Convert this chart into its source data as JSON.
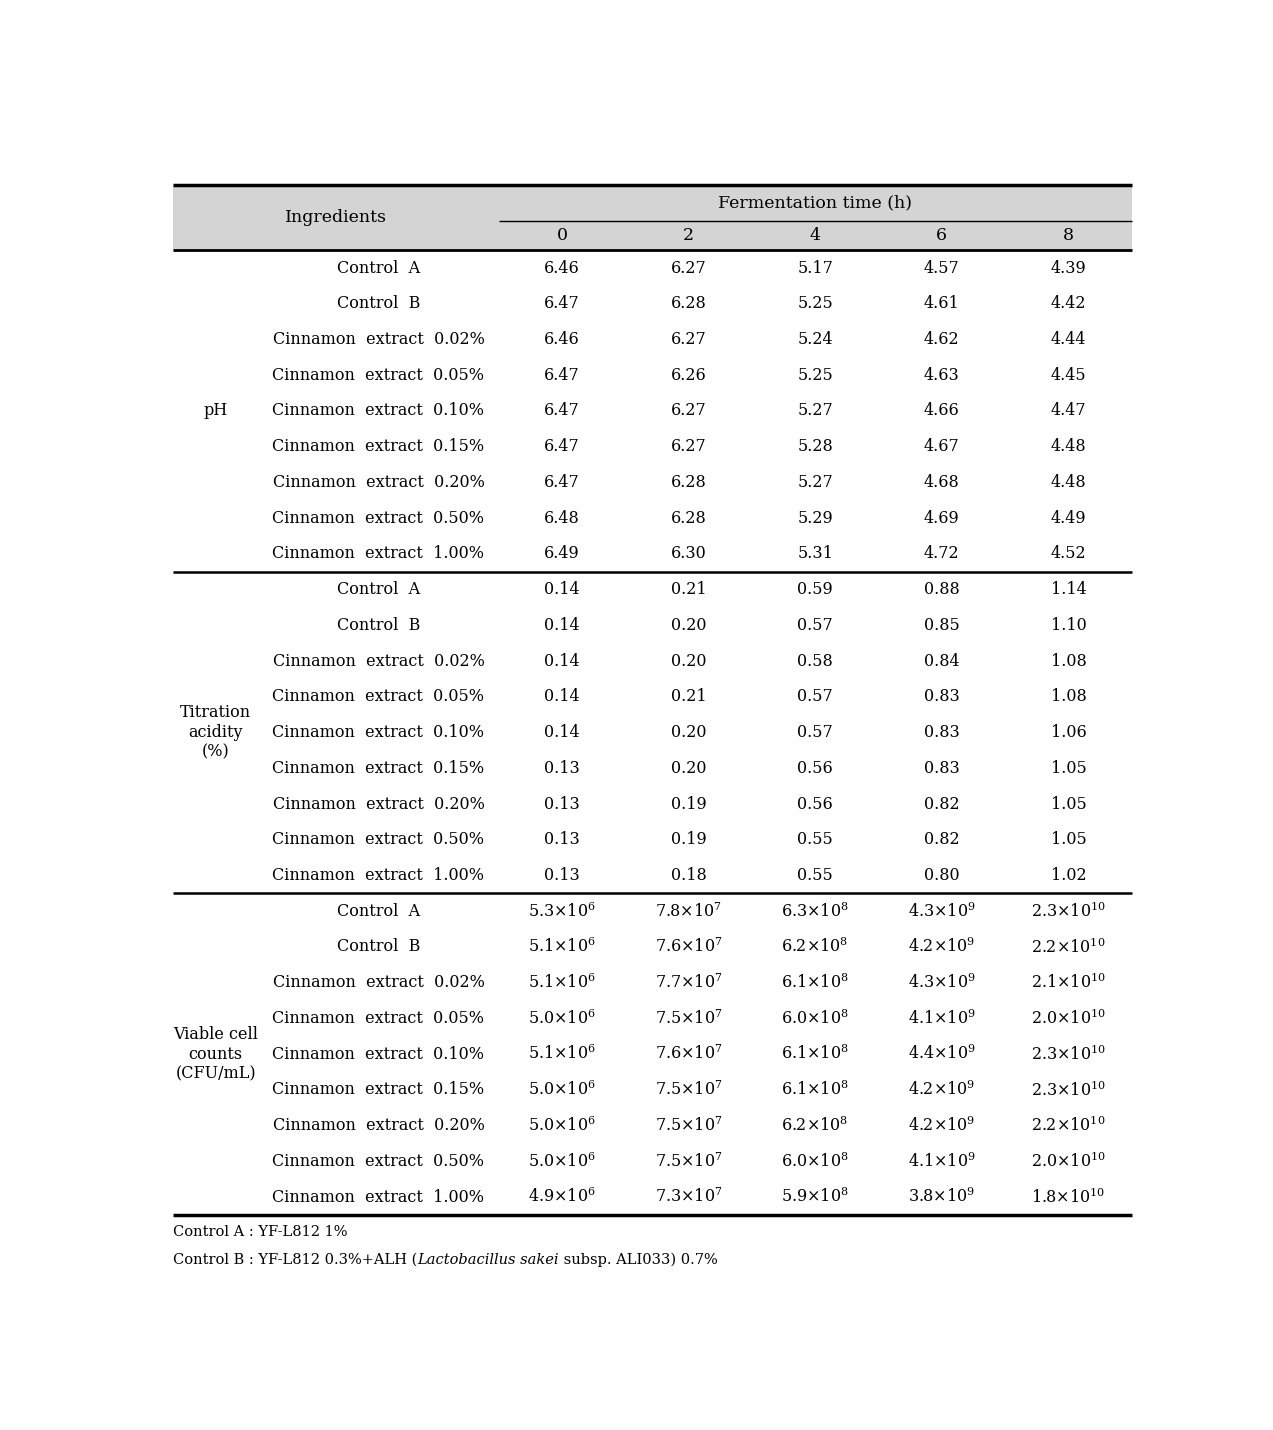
{
  "sections": [
    {
      "label": "pH",
      "rows": [
        [
          "Control  A",
          "6.46",
          "6.27",
          "5.17",
          "4.57",
          "4.39"
        ],
        [
          "Control  B",
          "6.47",
          "6.28",
          "5.25",
          "4.61",
          "4.42"
        ],
        [
          "Cinnamon  extract  0.02%",
          "6.46",
          "6.27",
          "5.24",
          "4.62",
          "4.44"
        ],
        [
          "Cinnamon  extract  0.05%",
          "6.47",
          "6.26",
          "5.25",
          "4.63",
          "4.45"
        ],
        [
          "Cinnamon  extract  0.10%",
          "6.47",
          "6.27",
          "5.27",
          "4.66",
          "4.47"
        ],
        [
          "Cinnamon  extract  0.15%",
          "6.47",
          "6.27",
          "5.28",
          "4.67",
          "4.48"
        ],
        [
          "Cinnamon  extract  0.20%",
          "6.47",
          "6.28",
          "5.27",
          "4.68",
          "4.48"
        ],
        [
          "Cinnamon  extract  0.50%",
          "6.48",
          "6.28",
          "5.29",
          "4.69",
          "4.49"
        ],
        [
          "Cinnamon  extract  1.00%",
          "6.49",
          "6.30",
          "5.31",
          "4.72",
          "4.52"
        ]
      ]
    },
    {
      "label": "Titration\nacidity\n(%)",
      "rows": [
        [
          "Control  A",
          "0.14",
          "0.21",
          "0.59",
          "0.88",
          "1.14"
        ],
        [
          "Control  B",
          "0.14",
          "0.20",
          "0.57",
          "0.85",
          "1.10"
        ],
        [
          "Cinnamon  extract  0.02%",
          "0.14",
          "0.20",
          "0.58",
          "0.84",
          "1.08"
        ],
        [
          "Cinnamon  extract  0.05%",
          "0.14",
          "0.21",
          "0.57",
          "0.83",
          "1.08"
        ],
        [
          "Cinnamon  extract  0.10%",
          "0.14",
          "0.20",
          "0.57",
          "0.83",
          "1.06"
        ],
        [
          "Cinnamon  extract  0.15%",
          "0.13",
          "0.20",
          "0.56",
          "0.83",
          "1.05"
        ],
        [
          "Cinnamon  extract  0.20%",
          "0.13",
          "0.19",
          "0.56",
          "0.82",
          "1.05"
        ],
        [
          "Cinnamon  extract  0.50%",
          "0.13",
          "0.19",
          "0.55",
          "0.82",
          "1.05"
        ],
        [
          "Cinnamon  extract  1.00%",
          "0.13",
          "0.18",
          "0.55",
          "0.80",
          "1.02"
        ]
      ]
    },
    {
      "label": "Viable cell\ncounts\n(CFU/mL)",
      "rows": [
        [
          "Control  A",
          "5.3×10$^6$",
          "7.8×10$^7$",
          "6.3×10$^8$",
          "4.3×10$^9$",
          "2.3×10$^{10}$"
        ],
        [
          "Control  B",
          "5.1×10$^6$",
          "7.6×10$^7$",
          "6.2×10$^8$",
          "4.2×10$^9$",
          "2.2×10$^{10}$"
        ],
        [
          "Cinnamon  extract  0.02%",
          "5.1×10$^6$",
          "7.7×10$^7$",
          "6.1×10$^8$",
          "4.3×10$^9$",
          "2.1×10$^{10}$"
        ],
        [
          "Cinnamon  extract  0.05%",
          "5.0×10$^6$",
          "7.5×10$^7$",
          "6.0×10$^8$",
          "4.1×10$^9$",
          "2.0×10$^{10}$"
        ],
        [
          "Cinnamon  extract  0.10%",
          "5.1×10$^6$",
          "7.6×10$^7$",
          "6.1×10$^8$",
          "4.4×10$^9$",
          "2.3×10$^{10}$"
        ],
        [
          "Cinnamon  extract  0.15%",
          "5.0×10$^6$",
          "7.5×10$^7$",
          "6.1×10$^8$",
          "4.2×10$^9$",
          "2.3×10$^{10}$"
        ],
        [
          "Cinnamon  extract  0.20%",
          "5.0×10$^6$",
          "7.5×10$^7$",
          "6.2×10$^8$",
          "4.2×10$^9$",
          "2.2×10$^{10}$"
        ],
        [
          "Cinnamon  extract  0.50%",
          "5.0×10$^6$",
          "7.5×10$^7$",
          "6.0×10$^8$",
          "4.1×10$^9$",
          "2.0×10$^{10}$"
        ],
        [
          "Cinnamon  extract  1.00%",
          "4.9×10$^6$",
          "7.3×10$^7$",
          "5.9×10$^8$",
          "3.8×10$^9$",
          "1.8×10$^{10}$"
        ]
      ]
    }
  ],
  "time_labels": [
    "0",
    "2",
    "4",
    "6",
    "8"
  ],
  "bg_color": "#d4d4d4",
  "footnote1": "Control A : YF-L812 1%",
  "footnote2_normal1": "Control B : YF-L812 0.3%+ALH (",
  "footnote2_italic": "Lactobacillus sakei",
  "footnote2_normal2": " subsp. ALI033) 0.7%"
}
